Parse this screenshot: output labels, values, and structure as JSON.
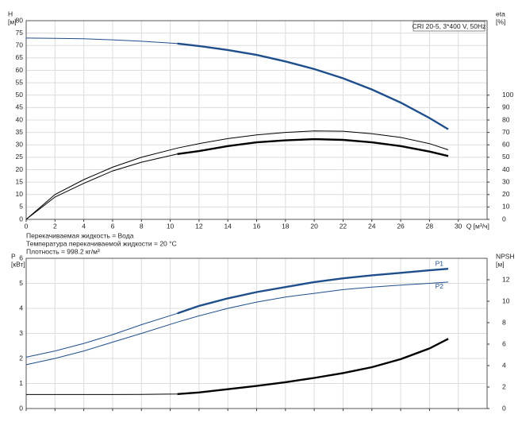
{
  "chart_data": [
    {
      "type": "line",
      "title": "CRI 20-5, 3*400 V, 50Hz",
      "ylabel": [
        "H",
        "[м]"
      ],
      "y2label": [
        "eta",
        "[%]"
      ],
      "xlabel": "Q [м³/ч]",
      "annotations": [
        "Перекачиваемая жидкость = Вода",
        "Температура перекачиваемой жидкости = 20 °C",
        "Плотность = 998.2 кг/м³"
      ],
      "x": [
        0,
        2,
        4,
        6,
        8,
        10.5,
        12,
        14,
        16,
        18,
        20,
        22,
        24,
        26,
        28,
        29.3
      ],
      "xlim": [
        0,
        32
      ],
      "xticks": [
        0,
        2,
        4,
        6,
        8,
        10,
        12,
        14,
        16,
        18,
        20,
        22,
        24,
        26,
        28,
        30
      ],
      "ylim": [
        0,
        80
      ],
      "yticks": [
        0,
        5,
        10,
        15,
        20,
        25,
        30,
        35,
        40,
        45,
        50,
        55,
        60,
        65,
        70,
        75,
        80
      ],
      "y2lim": [
        0,
        160
      ],
      "y2ticks": [
        0,
        10,
        20,
        30,
        40,
        50,
        60,
        70,
        80,
        90,
        100
      ],
      "grid": true,
      "series": [
        {
          "color": "#1f4e8c",
          "bold_from": 10.5,
          "values": [
            73,
            72.9,
            72.7,
            72.3,
            71.7,
            70.8,
            69.8,
            68.2,
            66.2,
            63.6,
            60.5,
            56.8,
            52.3,
            47,
            40.8,
            36.3
          ]
        },
        {
          "color": "#000000",
          "axis": "y2",
          "values": [
            0,
            20,
            32,
            42,
            50,
            57.4,
            61,
            65,
            68,
            70,
            71.2,
            71,
            69,
            66,
            61,
            56
          ]
        },
        {
          "color": "#000000",
          "axis": "y2",
          "bold_from": 10.5,
          "values": [
            0,
            18,
            29,
            39,
            46,
            52.6,
            55,
            59,
            62,
            63.6,
            64.6,
            64,
            62,
            59,
            54.6,
            51
          ]
        }
      ]
    },
    {
      "type": "line",
      "ylabel": [
        "P",
        "[кВт]"
      ],
      "y2label": [
        "NPSH",
        "[м]"
      ],
      "x": [
        0,
        2,
        4,
        6,
        8,
        10.5,
        12,
        14,
        16,
        18,
        20,
        22,
        24,
        26,
        28,
        29.3
      ],
      "xlim": [
        0,
        32
      ],
      "ylim": [
        0,
        6
      ],
      "yticks": [
        0,
        1,
        2,
        3,
        4,
        5,
        6
      ],
      "y2lim": [
        0,
        14
      ],
      "y2ticks": [
        0,
        2,
        4,
        6,
        8,
        10,
        12
      ],
      "grid": true,
      "series": [
        {
          "name": "P1",
          "color": "#1f4e8c",
          "bold_from": 10.5,
          "values": [
            2.05,
            2.3,
            2.6,
            2.95,
            3.35,
            3.8,
            4.1,
            4.4,
            4.65,
            4.85,
            5.05,
            5.2,
            5.32,
            5.42,
            5.52,
            5.58
          ]
        },
        {
          "name": "P2",
          "color": "#1f4e8c",
          "values": [
            1.75,
            2.0,
            2.3,
            2.65,
            3.0,
            3.45,
            3.7,
            4.0,
            4.25,
            4.45,
            4.6,
            4.75,
            4.85,
            4.93,
            5.0,
            5.05
          ]
        },
        {
          "color": "#000000",
          "axis": "y2",
          "bold_from": 10.5,
          "values": [
            1.3,
            1.3,
            1.3,
            1.3,
            1.32,
            1.35,
            1.5,
            1.8,
            2.1,
            2.45,
            2.85,
            3.3,
            3.85,
            4.6,
            5.6,
            6.5
          ]
        }
      ]
    }
  ]
}
